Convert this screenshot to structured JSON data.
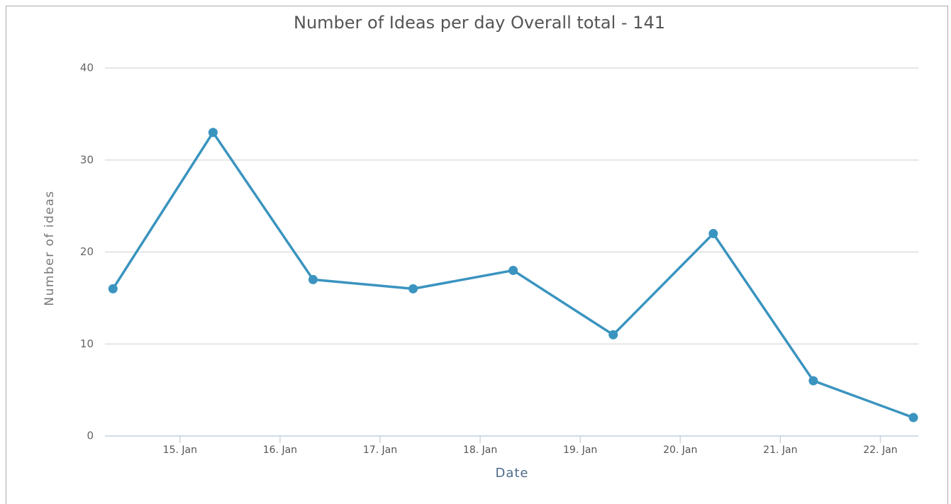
{
  "chart_data": {
    "type": "line",
    "title": "Number of Ideas per day Overall total - 141",
    "x_label": "Date",
    "y_label": "Number of ideas",
    "x": [
      14.33,
      15.33,
      16.33,
      17.33,
      18.33,
      19.33,
      20.33,
      21.33,
      22.33
    ],
    "series": [
      {
        "name": "Number of ideas",
        "color": "#3a94bf",
        "values": [
          16,
          33,
          17,
          16,
          18,
          11,
          22,
          6,
          2
        ]
      }
    ],
    "xlim": [
      14.25,
      22.38
    ],
    "xticks": [
      {
        "value": 15,
        "label": "15. Jan"
      },
      {
        "value": 16,
        "label": "16. Jan"
      },
      {
        "value": 17,
        "label": "17. Jan"
      },
      {
        "value": 18,
        "label": "18. Jan"
      },
      {
        "value": 19,
        "label": "19. Jan"
      },
      {
        "value": 20,
        "label": "20. Jan"
      },
      {
        "value": 21,
        "label": "21. Jan"
      },
      {
        "value": 22,
        "label": "22. Jan"
      }
    ],
    "ylim": [
      0,
      40
    ],
    "yticks": [
      0,
      10,
      20,
      30,
      40
    ],
    "grid": true,
    "legend": false
  }
}
